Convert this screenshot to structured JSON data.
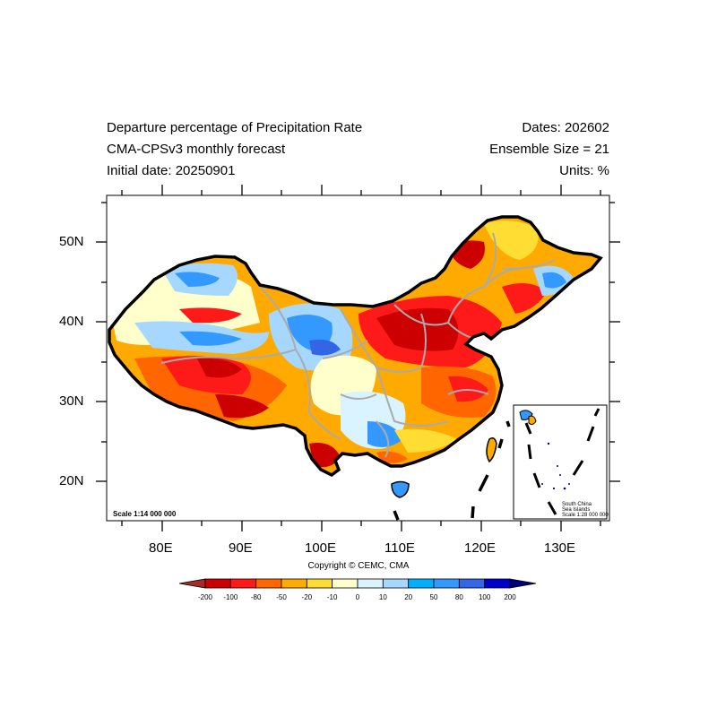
{
  "header": {
    "title_line1": "Departure percentage of Precipitation Rate",
    "title_line2": "CMA-CPSv3 monthly forecast",
    "title_line3": "Initial date: 20250901",
    "dates": "Dates: 202602",
    "ensemble": "Ensemble Size = 21",
    "units": "Units: %"
  },
  "map": {
    "lat_labels": [
      "50N",
      "40N",
      "30N",
      "20N"
    ],
    "lon_labels": [
      "80E",
      "90E",
      "100E",
      "110E",
      "120E",
      "130E"
    ],
    "scale_note": "Scale 1:14 000 000",
    "inset": {
      "line1": "South China",
      "line2": "Sea Islands",
      "line3": "Scale 1:28 000 000"
    },
    "copyright": "Copyright © CEMC, CMA"
  },
  "colorbar": {
    "labels": [
      "-200",
      "-100",
      "-80",
      "-50",
      "-20",
      "-10",
      "0",
      "10",
      "20",
      "50",
      "80",
      "100",
      "200"
    ],
    "colors": [
      "#a52a2a",
      "#cc0000",
      "#ff1a1a",
      "#ff6600",
      "#ffaa00",
      "#ffdd33",
      "#ffffcc",
      "#d9f4ff",
      "#a6d8ff",
      "#00b0ff",
      "#3399ff",
      "#3366e6",
      "#0000cc",
      "#00007f"
    ]
  }
}
